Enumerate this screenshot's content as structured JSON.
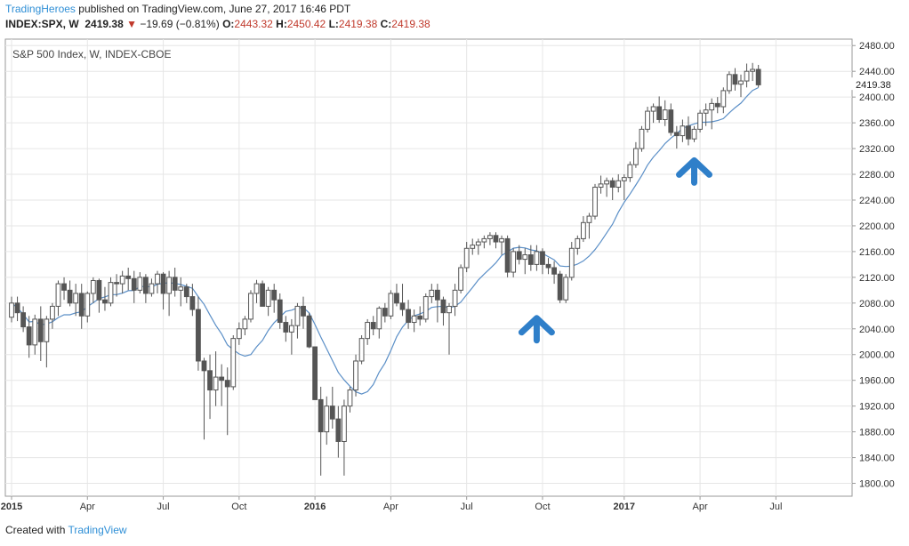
{
  "header": {
    "author": "TradingHeroes",
    "published": "published on TradingView.com, June 27, 2017 16:46 PDT",
    "symbol": "INDEX:SPX, W",
    "last": "2419.38",
    "down_arrow": "▼",
    "change": "−19.69 (−0.81%)",
    "o_label": "O:",
    "o_value": "2443.32",
    "h_label": "H:",
    "h_value": "2450.42",
    "l_label": "L:",
    "l_value": "2419.38",
    "c_label": "C:",
    "c_value": "2419.38"
  },
  "footer": {
    "created": "Created with",
    "brand": "TradingView"
  },
  "colors": {
    "accent": "#2f8fd6",
    "down": "#c0392b",
    "candle": "#555555",
    "ma": "#5b8fc7",
    "arrow": "#2f7fc9"
  },
  "chart_data": {
    "type": "candlestick",
    "title": "S&P 500 Index, W, INDEX-CBOE",
    "last_price_label": "2419.38",
    "ylim": [
      1780,
      2490
    ],
    "yticks": [
      1800,
      1840,
      1880,
      1920,
      1960,
      2000,
      2040,
      2080,
      2120,
      2160,
      2200,
      2240,
      2280,
      2320,
      2360,
      2400,
      2440,
      2480
    ],
    "xticks": [
      {
        "label": "2015",
        "i": 0,
        "bold": true
      },
      {
        "label": "Apr",
        "i": 13
      },
      {
        "label": "Jul",
        "i": 26
      },
      {
        "label": "Oct",
        "i": 39
      },
      {
        "label": "2016",
        "i": 52,
        "bold": true
      },
      {
        "label": "Apr",
        "i": 65
      },
      {
        "label": "Jul",
        "i": 78
      },
      {
        "label": "Oct",
        "i": 91
      },
      {
        "label": "2017",
        "i": 105,
        "bold": true
      },
      {
        "label": "Apr",
        "i": 118
      },
      {
        "label": "Jul",
        "i": 131
      }
    ],
    "ohlc": [
      [
        2058,
        2090,
        2050,
        2080
      ],
      [
        2080,
        2090,
        2052,
        2065
      ],
      [
        2065,
        2075,
        2035,
        2043
      ],
      [
        2043,
        2060,
        1995,
        2015
      ],
      [
        2015,
        2062,
        2000,
        2055
      ],
      [
        2055,
        2075,
        1990,
        2020
      ],
      [
        2020,
        2060,
        1980,
        2055
      ],
      [
        2055,
        2080,
        2040,
        2075
      ],
      [
        2075,
        2115,
        2060,
        2110
      ],
      [
        2110,
        2120,
        2085,
        2100
      ],
      [
        2100,
        2115,
        2075,
        2080
      ],
      [
        2080,
        2110,
        2060,
        2095
      ],
      [
        2095,
        2110,
        2040,
        2060
      ],
      [
        2060,
        2098,
        2050,
        2095
      ],
      [
        2095,
        2120,
        2080,
        2115
      ],
      [
        2115,
        2118,
        2065,
        2085
      ],
      [
        2085,
        2105,
        2068,
        2080
      ],
      [
        2080,
        2120,
        2075,
        2112
      ],
      [
        2112,
        2125,
        2090,
        2110
      ],
      [
        2110,
        2130,
        2095,
        2122
      ],
      [
        2122,
        2135,
        2100,
        2118
      ],
      [
        2118,
        2130,
        2080,
        2100
      ],
      [
        2100,
        2128,
        2095,
        2120
      ],
      [
        2120,
        2125,
        2080,
        2095
      ],
      [
        2095,
        2118,
        2090,
        2110
      ],
      [
        2110,
        2130,
        2095,
        2125
      ],
      [
        2125,
        2128,
        2070,
        2095
      ],
      [
        2095,
        2130,
        2060,
        2120
      ],
      [
        2120,
        2135,
        2090,
        2100
      ],
      [
        2100,
        2120,
        2075,
        2105
      ],
      [
        2105,
        2110,
        2080,
        2090
      ],
      [
        2090,
        2110,
        2060,
        2070
      ],
      [
        2070,
        2090,
        1975,
        1990
      ],
      [
        1990,
        1995,
        1868,
        1975
      ],
      [
        1975,
        2000,
        1900,
        1945
      ],
      [
        1945,
        2005,
        1920,
        1965
      ],
      [
        1965,
        1985,
        1920,
        1960
      ],
      [
        1960,
        1980,
        1875,
        1950
      ],
      [
        1950,
        2030,
        1945,
        2025
      ],
      [
        2025,
        2050,
        2015,
        2040
      ],
      [
        2040,
        2060,
        2030,
        2055
      ],
      [
        2055,
        2100,
        2050,
        2095
      ],
      [
        2095,
        2116,
        2080,
        2110
      ],
      [
        2110,
        2115,
        2075,
        2075
      ],
      [
        2075,
        2105,
        2060,
        2100
      ],
      [
        2100,
        2110,
        2065,
        2085
      ],
      [
        2085,
        2095,
        2040,
        2050
      ],
      [
        2050,
        2060,
        2020,
        2035
      ],
      [
        2035,
        2055,
        2000,
        2045
      ],
      [
        2045,
        2080,
        2025,
        2075
      ],
      [
        2075,
        2090,
        2040,
        2060
      ],
      [
        2060,
        2065,
        2010,
        2012
      ],
      [
        2012,
        2012,
        1935,
        1930
      ],
      [
        1930,
        1950,
        1812,
        1880
      ],
      [
        1880,
        1935,
        1860,
        1920
      ],
      [
        1920,
        1950,
        1885,
        1900
      ],
      [
        1900,
        1920,
        1840,
        1865
      ],
      [
        1865,
        1930,
        1812,
        1920
      ],
      [
        1920,
        1950,
        1910,
        1945
      ],
      [
        1945,
        2000,
        1935,
        1990
      ],
      [
        1990,
        2030,
        1985,
        2025
      ],
      [
        2025,
        2055,
        2015,
        2050
      ],
      [
        2050,
        2060,
        2030,
        2040
      ],
      [
        2040,
        2075,
        2025,
        2072
      ],
      [
        2072,
        2080,
        2050,
        2060
      ],
      [
        2060,
        2100,
        2055,
        2095
      ],
      [
        2095,
        2110,
        2075,
        2080
      ],
      [
        2080,
        2110,
        2060,
        2070
      ],
      [
        2070,
        2085,
        2040,
        2050
      ],
      [
        2050,
        2070,
        2035,
        2060
      ],
      [
        2060,
        2075,
        2045,
        2055
      ],
      [
        2055,
        2095,
        2050,
        2090
      ],
      [
        2090,
        2110,
        2080,
        2100
      ],
      [
        2100,
        2110,
        2050,
        2085
      ],
      [
        2085,
        2090,
        2045,
        2065
      ],
      [
        2065,
        2080,
        2000,
        2075
      ],
      [
        2075,
        2110,
        2060,
        2100
      ],
      [
        2100,
        2140,
        2095,
        2135
      ],
      [
        2135,
        2175,
        2128,
        2165
      ],
      [
        2165,
        2180,
        2155,
        2170
      ],
      [
        2170,
        2180,
        2155,
        2175
      ],
      [
        2175,
        2185,
        2165,
        2180
      ],
      [
        2180,
        2190,
        2170,
        2185
      ],
      [
        2185,
        2190,
        2165,
        2175
      ],
      [
        2175,
        2185,
        2155,
        2180
      ],
      [
        2180,
        2185,
        2120,
        2128
      ],
      [
        2128,
        2165,
        2120,
        2160
      ],
      [
        2160,
        2170,
        2140,
        2148
      ],
      [
        2148,
        2165,
        2125,
        2155
      ],
      [
        2155,
        2170,
        2130,
        2140
      ],
      [
        2140,
        2170,
        2130,
        2160
      ],
      [
        2160,
        2165,
        2125,
        2140
      ],
      [
        2140,
        2150,
        2125,
        2135
      ],
      [
        2135,
        2145,
        2110,
        2125
      ],
      [
        2125,
        2130,
        2080,
        2085
      ],
      [
        2085,
        2125,
        2080,
        2120
      ],
      [
        2120,
        2175,
        2115,
        2165
      ],
      [
        2165,
        2185,
        2155,
        2180
      ],
      [
        2180,
        2215,
        2175,
        2205
      ],
      [
        2205,
        2220,
        2180,
        2215
      ],
      [
        2215,
        2265,
        2210,
        2260
      ],
      [
        2260,
        2278,
        2250,
        2265
      ],
      [
        2265,
        2275,
        2245,
        2270
      ],
      [
        2270,
        2275,
        2240,
        2260
      ],
      [
        2260,
        2280,
        2252,
        2270
      ],
      [
        2270,
        2280,
        2240,
        2275
      ],
      [
        2275,
        2300,
        2268,
        2295
      ],
      [
        2295,
        2330,
        2290,
        2320
      ],
      [
        2320,
        2355,
        2315,
        2350
      ],
      [
        2350,
        2385,
        2345,
        2378
      ],
      [
        2378,
        2390,
        2360,
        2385
      ],
      [
        2385,
        2401,
        2360,
        2365
      ],
      [
        2365,
        2395,
        2355,
        2380
      ],
      [
        2380,
        2390,
        2340,
        2345
      ],
      [
        2345,
        2355,
        2320,
        2340
      ],
      [
        2340,
        2365,
        2330,
        2355
      ],
      [
        2355,
        2370,
        2325,
        2335
      ],
      [
        2335,
        2355,
        2330,
        2350
      ],
      [
        2350,
        2380,
        2345,
        2375
      ],
      [
        2375,
        2390,
        2355,
        2380
      ],
      [
        2380,
        2398,
        2350,
        2390
      ],
      [
        2390,
        2400,
        2375,
        2385
      ],
      [
        2385,
        2415,
        2375,
        2410
      ],
      [
        2410,
        2440,
        2405,
        2435
      ],
      [
        2435,
        2445,
        2410,
        2420
      ],
      [
        2420,
        2435,
        2400,
        2425
      ],
      [
        2425,
        2452,
        2415,
        2440
      ],
      [
        2440,
        2453,
        2425,
        2443
      ],
      [
        2443,
        2450,
        2415,
        2419
      ]
    ],
    "ma_period": 10
  },
  "annotations": [
    {
      "type": "arrow-up",
      "index": 90,
      "value": 2040
    },
    {
      "type": "arrow-up",
      "index": 117,
      "value": 2285
    }
  ]
}
